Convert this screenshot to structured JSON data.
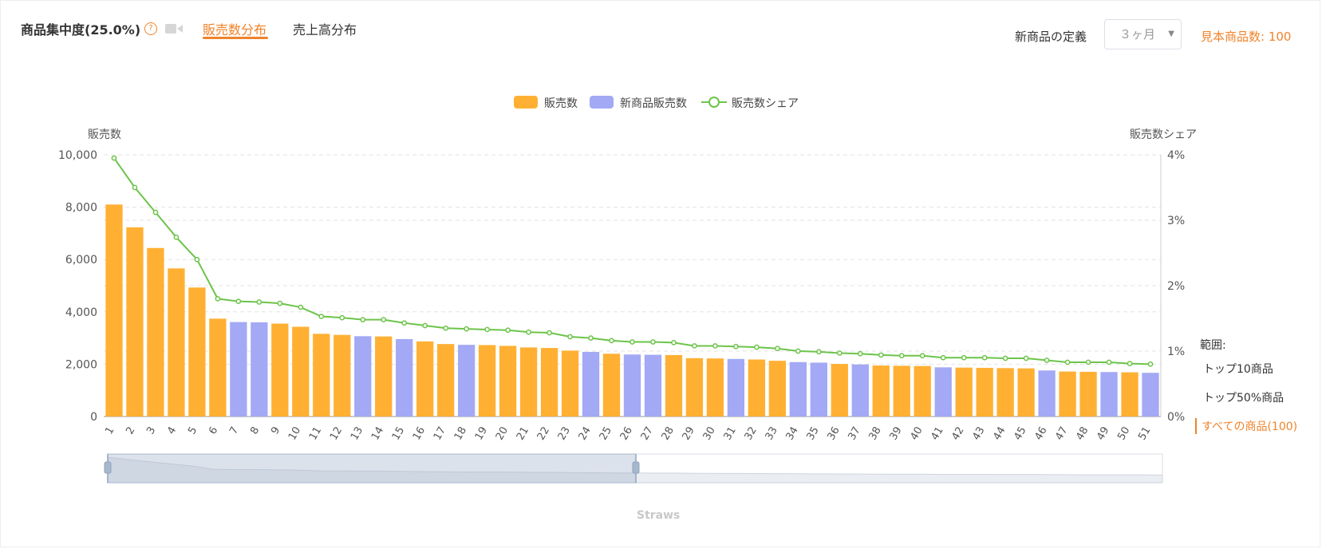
{
  "header": {
    "title": "商品集中度(25.0%)",
    "help_icon": "?",
    "tabs": [
      {
        "label": "販売数分布",
        "active": true
      },
      {
        "label": "売上高分布",
        "active": false
      }
    ],
    "new_product_definition_label": "新商品の定義",
    "new_product_definition_value": "３ヶ月",
    "sample_count_label": "見本商品数: 100"
  },
  "colors": {
    "accent": "#f0832a",
    "bar_sales": "#ffb033",
    "bar_new": "#a3a9f5",
    "line_share": "#6cc44a"
  },
  "range": {
    "label": "範囲:",
    "options": [
      "トップ10商品",
      "トップ50%商品",
      "すべての商品(100)"
    ],
    "selected": 2
  },
  "zoom": {
    "label": "Straws"
  },
  "chart_data": {
    "type": "bar",
    "legend": [
      "販売数",
      "新商品販売数",
      "販売数シェア"
    ],
    "legend_placement": "top-center",
    "ylabel_left": "販売数",
    "ylabel_right": "販売数シェア",
    "ylim_left": [
      0,
      10000
    ],
    "yticks_left": [
      "10,000",
      "8,000",
      "6,000",
      "4,000",
      "2,000",
      "0"
    ],
    "ylim_right": [
      0,
      4
    ],
    "yticks_right": [
      "4%",
      "3%",
      "2%",
      "1%",
      "0%"
    ],
    "grid": true,
    "categories": [
      "1",
      "2",
      "3",
      "4",
      "5",
      "6",
      "7",
      "8",
      "9",
      "10",
      "11",
      "12",
      "13",
      "14",
      "15",
      "16",
      "17",
      "18",
      "19",
      "20",
      "21",
      "22",
      "23",
      "24",
      "25",
      "26",
      "27",
      "28",
      "29",
      "30",
      "31",
      "32",
      "33",
      "34",
      "35",
      "36",
      "37",
      "38",
      "39",
      "40",
      "41",
      "42",
      "43",
      "44",
      "45",
      "46",
      "47",
      "48",
      "49",
      "50",
      "51"
    ],
    "series": [
      {
        "name": "販売数",
        "type": "bar",
        "values": [
          8100,
          7230,
          6440,
          5660,
          4930,
          3740,
          3610,
          3600,
          3550,
          3430,
          3160,
          3120,
          3070,
          3060,
          2960,
          2870,
          2770,
          2740,
          2730,
          2700,
          2640,
          2620,
          2520,
          2470,
          2400,
          2370,
          2360,
          2350,
          2230,
          2220,
          2200,
          2180,
          2130,
          2080,
          2060,
          2010,
          1990,
          1950,
          1940,
          1930,
          1880,
          1870,
          1860,
          1850,
          1840,
          1760,
          1720,
          1710,
          1700,
          1690,
          1670
        ],
        "is_new": [
          false,
          false,
          false,
          false,
          false,
          false,
          true,
          true,
          false,
          false,
          false,
          false,
          true,
          false,
          true,
          false,
          false,
          true,
          false,
          false,
          false,
          false,
          false,
          true,
          false,
          true,
          true,
          false,
          false,
          false,
          true,
          false,
          false,
          true,
          true,
          false,
          true,
          false,
          false,
          false,
          true,
          false,
          false,
          false,
          false,
          true,
          false,
          false,
          true,
          false,
          true
        ]
      },
      {
        "name": "販売数シェア",
        "type": "line",
        "values": [
          3.95,
          3.5,
          3.12,
          2.74,
          2.4,
          1.8,
          1.76,
          1.75,
          1.73,
          1.67,
          1.53,
          1.51,
          1.48,
          1.48,
          1.43,
          1.39,
          1.35,
          1.34,
          1.33,
          1.32,
          1.29,
          1.28,
          1.22,
          1.2,
          1.16,
          1.14,
          1.14,
          1.13,
          1.08,
          1.08,
          1.07,
          1.06,
          1.04,
          1.0,
          0.99,
          0.97,
          0.96,
          0.94,
          0.93,
          0.93,
          0.9,
          0.9,
          0.9,
          0.89,
          0.89,
          0.86,
          0.83,
          0.83,
          0.83,
          0.81,
          0.8
        ]
      }
    ]
  }
}
